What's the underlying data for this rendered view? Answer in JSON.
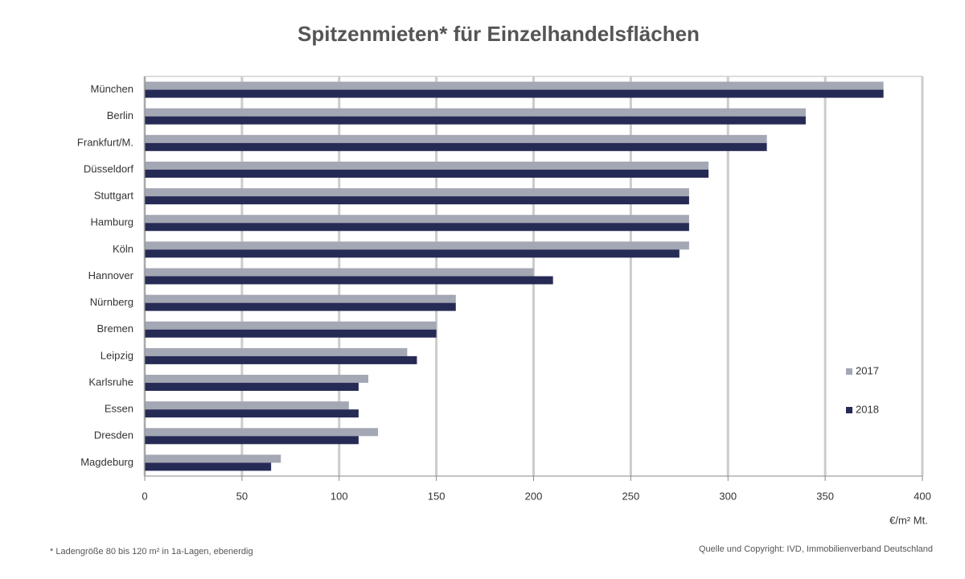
{
  "chart_data": {
    "type": "bar",
    "orientation": "horizontal",
    "title": "Spitzenmieten* für Einzelhandelsflächen",
    "categories": [
      "München",
      "Berlin",
      "Frankfurt/M.",
      "Düsseldorf",
      "Stuttgart",
      "Hamburg",
      "Köln",
      "Hannover",
      "Nürnberg",
      "Bremen",
      "Leipzig",
      "Karlsruhe",
      "Essen",
      "Dresden",
      "Magdeburg"
    ],
    "series": [
      {
        "name": "2017",
        "color": "#a4a7b4",
        "values": [
          380,
          340,
          320,
          290,
          280,
          280,
          280,
          200,
          160,
          150,
          135,
          115,
          105,
          120,
          70
        ]
      },
      {
        "name": "2018",
        "color": "#262b55",
        "values": [
          380,
          340,
          320,
          290,
          280,
          280,
          275,
          210,
          160,
          150,
          140,
          110,
          110,
          110,
          65
        ]
      }
    ],
    "xlim": [
      0,
      400
    ],
    "xticks": [
      0,
      50,
      100,
      150,
      200,
      250,
      300,
      350,
      400
    ],
    "x_label": "€/m² Mt.",
    "grid": true,
    "legend_position": "right",
    "footnote": "* Ladengröße 80 bis 120 m² in 1a-Lagen, ebenerdig",
    "source": "Quelle und Copyright: IVD, Immobilienverband Deutschland"
  }
}
